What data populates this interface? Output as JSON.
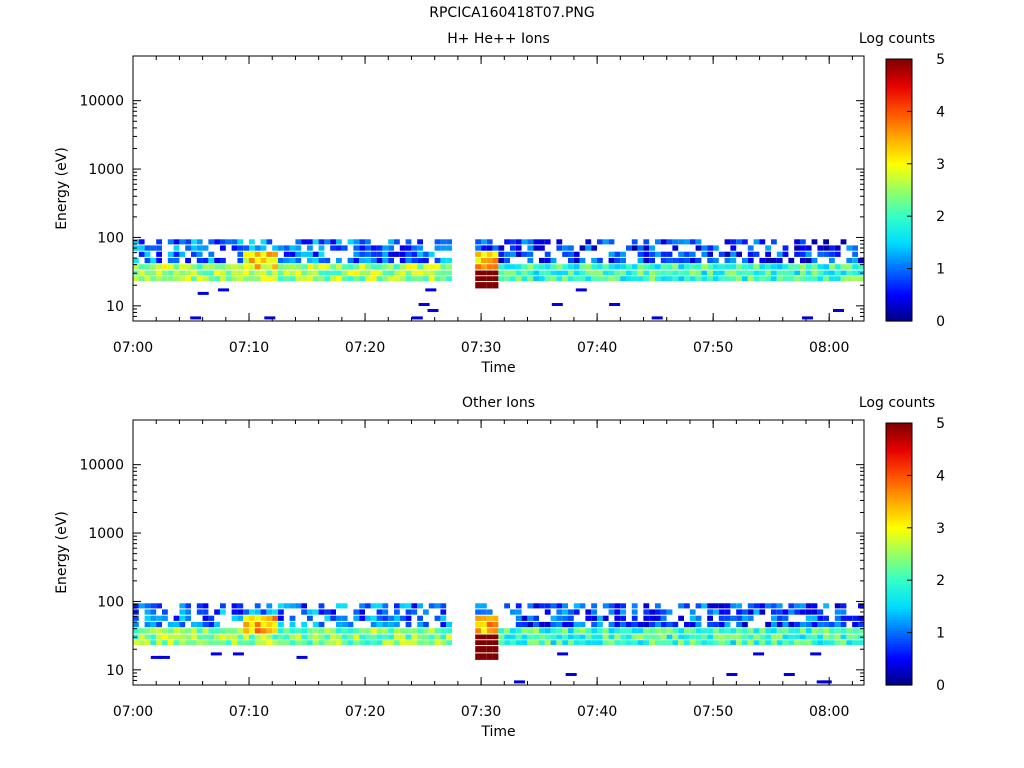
{
  "page_title": "RPCICA160418T07.PNG",
  "chart_data": [
    {
      "type": "heatmap",
      "title": "H+ He++ Ions",
      "xlabel": "Time",
      "ylabel": "Energy (eV)",
      "x_ticks": [
        "07:00",
        "07:10",
        "07:20",
        "07:30",
        "07:40",
        "07:50",
        "08:00"
      ],
      "xlim": [
        "07:00",
        "08:03"
      ],
      "y_scale": "log",
      "y_ticks": [
        10,
        100,
        1000,
        10000
      ],
      "y_tick_labels": [
        "10",
        "100",
        "1000",
        "10000"
      ],
      "ylim": [
        6,
        45000
      ],
      "colorbar": {
        "label": "Log counts",
        "range": [
          0,
          5
        ],
        "ticks": [
          "0",
          "1",
          "2",
          "3",
          "4",
          "5"
        ]
      },
      "data_gap": [
        "07:27",
        "07:29"
      ],
      "energy_bins_eV": [
        14,
        18,
        23,
        28,
        34,
        42,
        52,
        64,
        79
      ],
      "bands": [
        {
          "from": "07:00",
          "to": "07:27",
          "energy_eV": [
            23,
            34
          ],
          "log_counts": 2.5
        },
        {
          "from": "07:09",
          "to": "07:12",
          "energy_eV": [
            34,
            52
          ],
          "log_counts": 3.2
        },
        {
          "from": "07:00",
          "to": "07:27",
          "energy_eV": [
            42,
            95
          ],
          "log_counts": 1.0
        },
        {
          "from": "07:29",
          "to": "08:03",
          "energy_eV": [
            23,
            34
          ],
          "log_counts": 2.0
        },
        {
          "from": "07:29",
          "to": "08:03",
          "energy_eV": [
            42,
            95
          ],
          "log_counts": 0.7
        },
        {
          "from": "07:29",
          "to": "07:31",
          "energy_eV": [
            16,
            28
          ],
          "log_counts": 5.0
        },
        {
          "from": "07:29",
          "to": "07:31",
          "energy_eV": [
            34,
            52
          ],
          "log_counts": 3.3
        }
      ]
    },
    {
      "type": "heatmap",
      "title": "Other Ions",
      "xlabel": "Time",
      "ylabel": "Energy (eV)",
      "x_ticks": [
        "07:00",
        "07:10",
        "07:20",
        "07:30",
        "07:40",
        "07:50",
        "08:00"
      ],
      "xlim": [
        "07:00",
        "08:03"
      ],
      "y_scale": "log",
      "y_ticks": [
        10,
        100,
        1000,
        10000
      ],
      "y_tick_labels": [
        "10",
        "100",
        "1000",
        "10000"
      ],
      "ylim": [
        6,
        45000
      ],
      "colorbar": {
        "label": "Log counts",
        "range": [
          0,
          5
        ],
        "ticks": [
          "0",
          "1",
          "2",
          "3",
          "4",
          "5"
        ]
      },
      "data_gap": [
        "07:27",
        "07:29"
      ],
      "energy_bins_eV": [
        14,
        18,
        23,
        28,
        34,
        42,
        52,
        64,
        79
      ],
      "bands": [
        {
          "from": "07:00",
          "to": "07:27",
          "energy_eV": [
            20,
            34
          ],
          "log_counts": 2.4
        },
        {
          "from": "07:09",
          "to": "07:12",
          "energy_eV": [
            34,
            52
          ],
          "log_counts": 3.5
        },
        {
          "from": "07:00",
          "to": "07:27",
          "energy_eV": [
            42,
            95
          ],
          "log_counts": 1.0
        },
        {
          "from": "07:29",
          "to": "08:03",
          "energy_eV": [
            20,
            34
          ],
          "log_counts": 2.0
        },
        {
          "from": "07:29",
          "to": "08:03",
          "energy_eV": [
            42,
            95
          ],
          "log_counts": 0.8
        },
        {
          "from": "07:29",
          "to": "07:31",
          "energy_eV": [
            13,
            28
          ],
          "log_counts": 5.0
        },
        {
          "from": "07:29",
          "to": "07:31",
          "energy_eV": [
            34,
            52
          ],
          "log_counts": 3.6
        }
      ]
    }
  ]
}
